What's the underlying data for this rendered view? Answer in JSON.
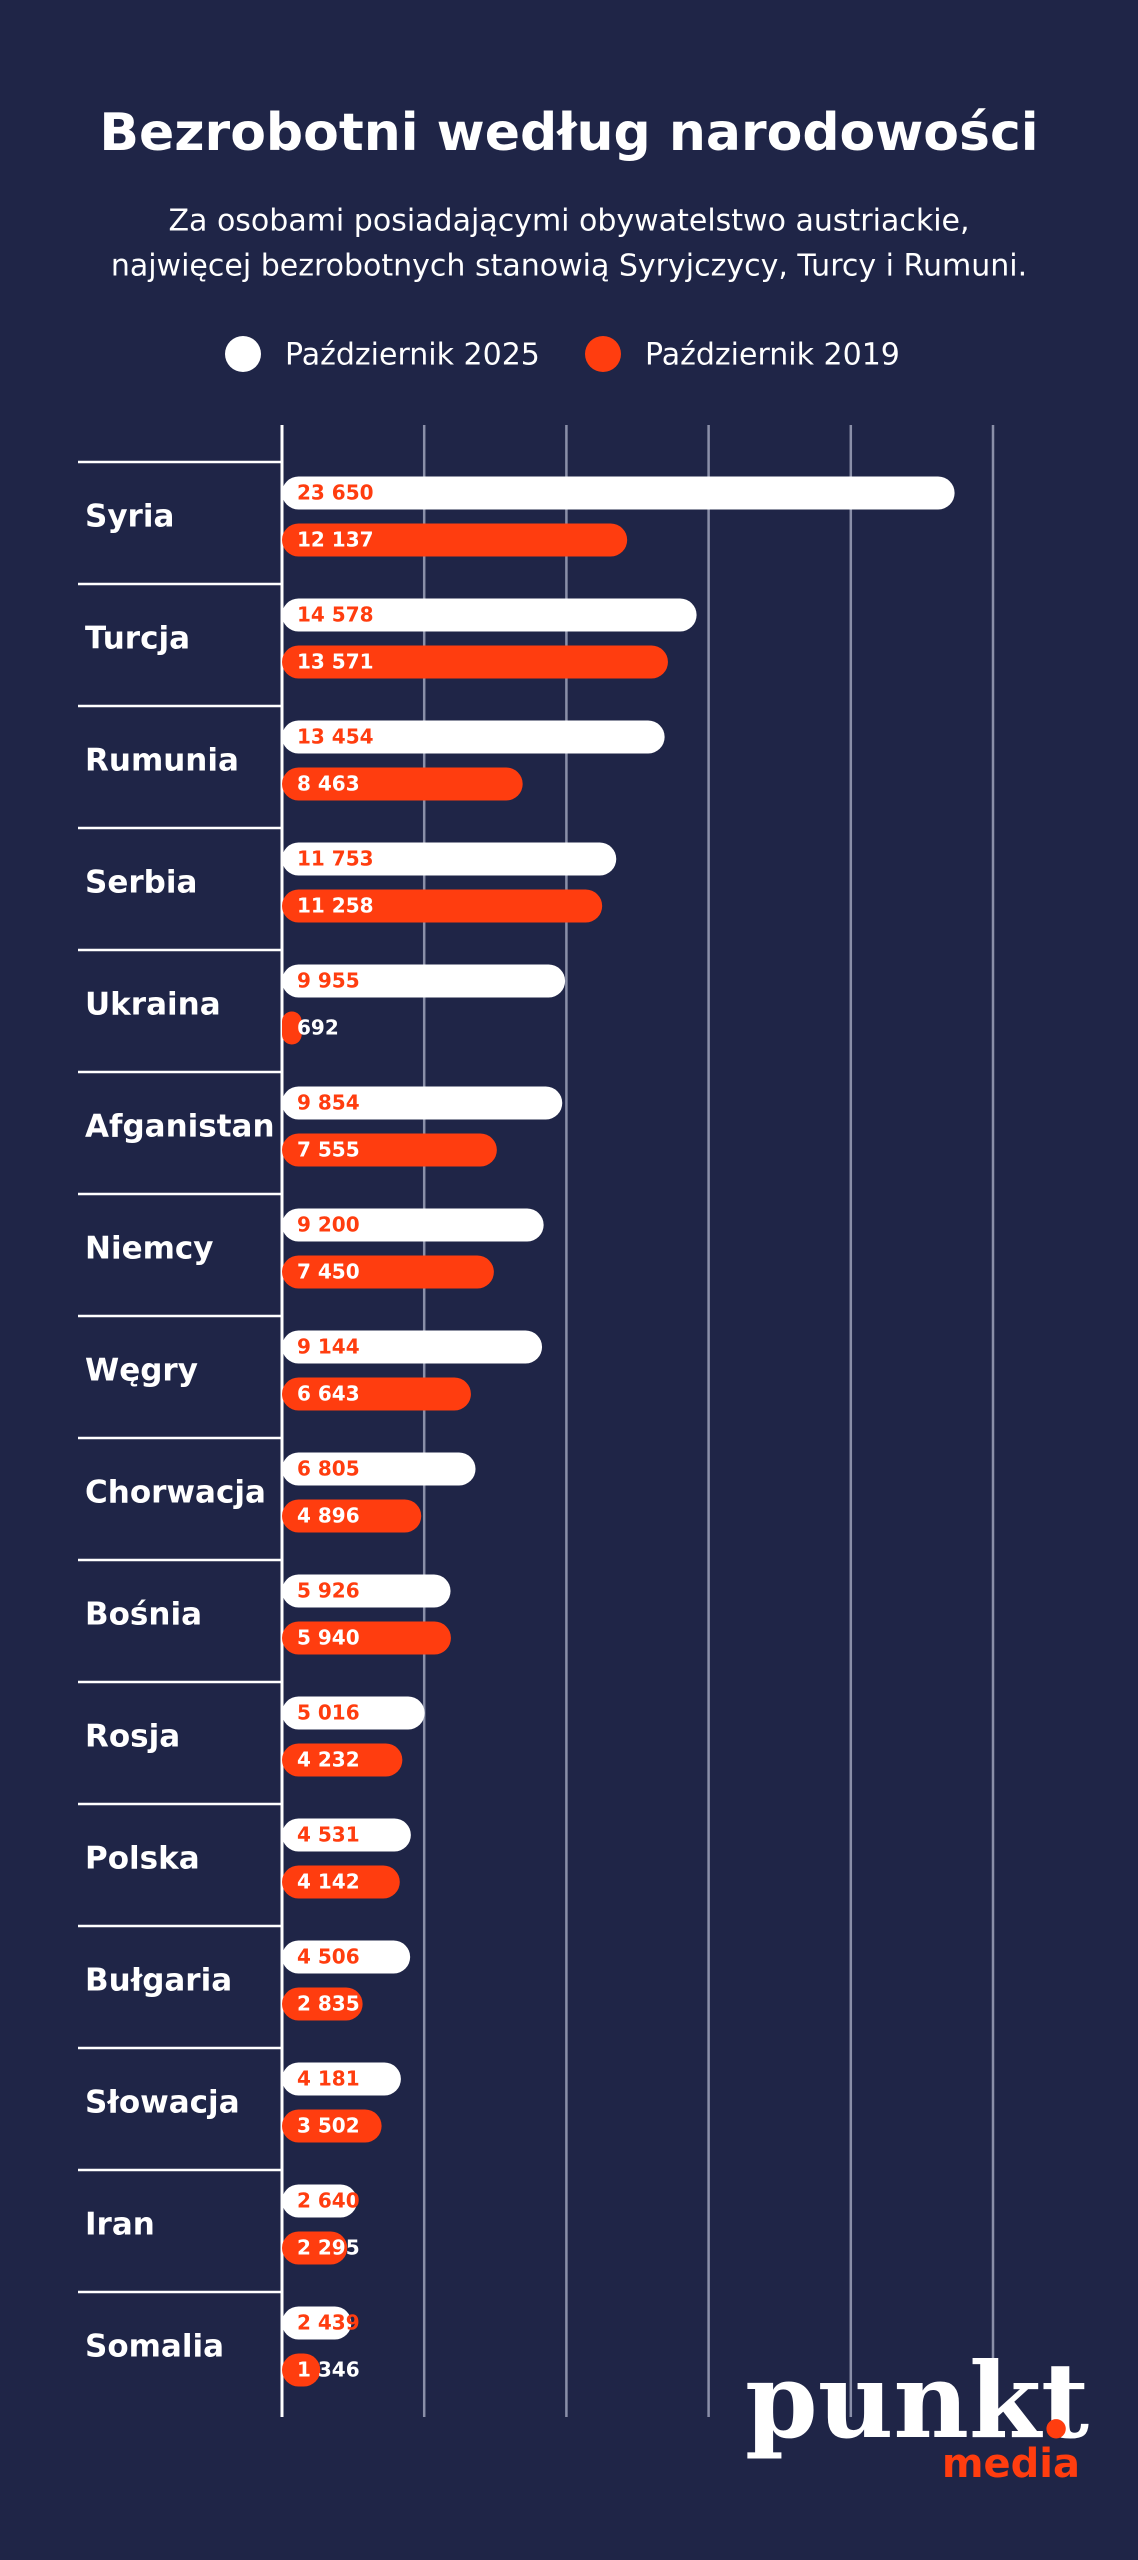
{
  "chart_data": {
    "type": "hbar",
    "title": "Bezrobotni według narodowości",
    "subtitle": [
      "Za osobami posiadającymi obywatelstwo austriackie,",
      "najwięcej bezrobotnych stanowią Syryjczycy, Turcy i Rumuni."
    ],
    "categories": [
      "Syria",
      "Turcja",
      "Rumunia",
      "Serbia",
      "Ukraina",
      "Afganistan",
      "Niemcy",
      "Węgry",
      "Chorwacja",
      "Bośnia",
      "Rosja",
      "Polska",
      "Bułgaria",
      "Słowacja",
      "Iran",
      "Somalia"
    ],
    "series": [
      {
        "name": "Październik 2025",
        "color": "#ffffff",
        "label_color": "#ff3d0f",
        "values": [
          23650,
          14578,
          13454,
          11753,
          9955,
          9854,
          9200,
          9144,
          6805,
          5926,
          5016,
          4531,
          4506,
          4181,
          2640,
          2439
        ],
        "value_labels": [
          "23 650",
          "14 578",
          "13 454",
          "11 753",
          "9 955",
          "9 854",
          "9 200",
          "9 144",
          "6 805",
          "5 926",
          "5 016",
          "4 531",
          "4 506",
          "4 181",
          "2 640",
          "2 439"
        ]
      },
      {
        "name": "Październik 2019",
        "color": "#ff3d0f",
        "label_color": "#ffffff",
        "values": [
          12137,
          13571,
          8463,
          11258,
          692,
          7555,
          7450,
          6643,
          4896,
          5940,
          4232,
          4142,
          2835,
          3502,
          2295,
          1346
        ],
        "value_labels": [
          "12 137",
          "13 571",
          "8 463",
          "11 258",
          "692",
          "7 555",
          "7 450",
          "6 643",
          "4 896",
          "5 940",
          "4 232",
          "4 142",
          "2 835",
          "3 502",
          "2 295",
          "1 346"
        ]
      }
    ],
    "xlim": [
      0,
      25000
    ],
    "xticks": [
      5000,
      10000,
      15000,
      20000,
      25000
    ],
    "grid": true,
    "legend": "top"
  },
  "logo": {
    "name": "punkt",
    "dot": ".",
    "sub": "media"
  }
}
